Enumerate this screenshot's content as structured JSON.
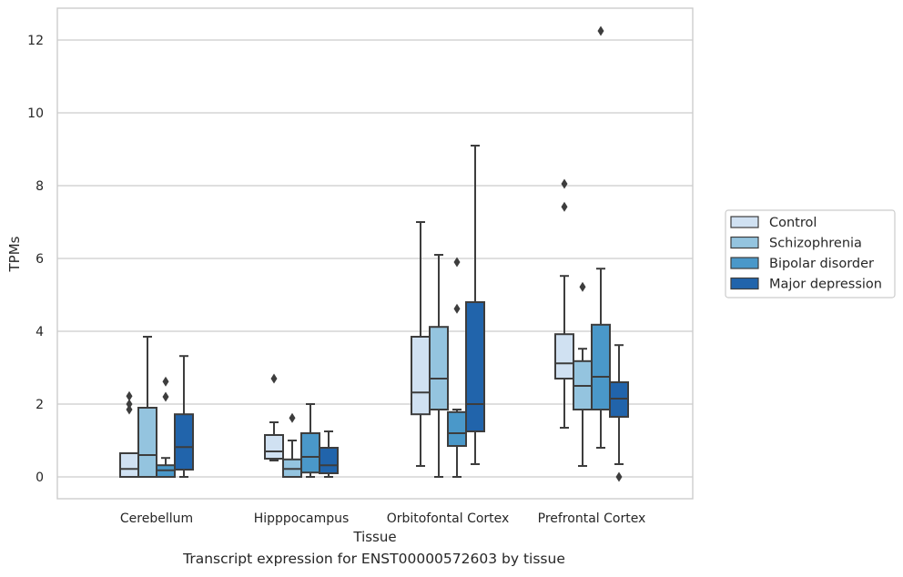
{
  "caption": "Transcript expression for ENST00000572603 by tissue",
  "chart_data": {
    "type": "box",
    "xlabel": "Tissue",
    "ylabel": "TPMs",
    "ylim": [
      -0.6,
      12.85
    ],
    "yticks": [
      0,
      2,
      4,
      6,
      8,
      10,
      12
    ],
    "grid": "horizontal",
    "legend_position": "right",
    "categories": [
      "Cerebellum",
      "Hipppocampus",
      "Orbitofontal Cortex",
      "Prefrontal Cortex"
    ],
    "series": [
      {
        "name": "Control",
        "color": "#d0e1f2",
        "boxes": [
          {
            "whislo": 0.0,
            "q1": 0.0,
            "med": 0.22,
            "q3": 0.65,
            "whishi": 0.65,
            "fliers": []
          },
          {
            "whislo": 0.45,
            "q1": 0.5,
            "med": 0.7,
            "q3": 1.15,
            "whishi": 1.5,
            "fliers": [
              2.7
            ]
          },
          {
            "whislo": 0.3,
            "q1": 1.72,
            "med": 2.32,
            "q3": 3.85,
            "whishi": 7.0,
            "fliers": []
          },
          {
            "whislo": 1.35,
            "q1": 2.7,
            "med": 3.12,
            "q3": 3.92,
            "whishi": 5.52,
            "fliers": [
              7.42,
              8.05
            ]
          }
        ]
      },
      {
        "name": "Schizophrenia",
        "color": "#94c4df",
        "boxes": [
          {
            "whislo": 0.0,
            "q1": 0.0,
            "med": 0.6,
            "q3": 1.9,
            "whishi": 3.85,
            "fliers": []
          },
          {
            "whislo": 0.0,
            "q1": 0.0,
            "med": 0.22,
            "q3": 0.48,
            "whishi": 1.0,
            "fliers": [
              1.62
            ]
          },
          {
            "whislo": 0.0,
            "q1": 1.85,
            "med": 2.7,
            "q3": 4.12,
            "whishi": 6.1,
            "fliers": []
          },
          {
            "whislo": 0.3,
            "q1": 1.85,
            "med": 2.5,
            "q3": 3.18,
            "whishi": 3.52,
            "fliers": [
              5.22
            ]
          }
        ]
      },
      {
        "name": "Bipolar disorder",
        "color": "#4a98c9",
        "boxes": [
          {
            "whislo": 0.0,
            "q1": 0.0,
            "med": 0.18,
            "q3": 0.32,
            "whishi": 0.52,
            "fliers": [
              2.2,
              2.62
            ]
          },
          {
            "whislo": 0.0,
            "q1": 0.12,
            "med": 0.55,
            "q3": 1.2,
            "whishi": 2.0,
            "fliers": []
          },
          {
            "whislo": 0.0,
            "q1": 0.85,
            "med": 1.2,
            "q3": 1.78,
            "whishi": 1.85,
            "fliers": [
              4.62,
              5.9
            ]
          },
          {
            "whislo": 0.8,
            "q1": 1.85,
            "med": 2.75,
            "q3": 4.18,
            "whishi": 5.72,
            "fliers": [
              12.25
            ]
          }
        ]
      },
      {
        "name": "Major depression",
        "color": "#2164ab",
        "boxes": [
          {
            "whislo": 0.0,
            "q1": 0.2,
            "med": 0.82,
            "q3": 1.72,
            "whishi": 3.32,
            "fliers": []
          },
          {
            "whislo": 0.0,
            "q1": 0.1,
            "med": 0.32,
            "q3": 0.8,
            "whishi": 1.25,
            "fliers": []
          },
          {
            "whislo": 0.35,
            "q1": 1.25,
            "med": 2.0,
            "q3": 4.8,
            "whishi": 9.1,
            "fliers": []
          },
          {
            "whislo": 0.35,
            "q1": 1.65,
            "med": 2.15,
            "q3": 2.6,
            "whishi": 3.62,
            "fliers": [
              0.0
            ]
          }
        ]
      }
    ],
    "extra_fliers": [
      {
        "category": "Cerebellum",
        "series": "Control",
        "values": [
          1.85,
          2.0,
          2.22
        ]
      }
    ]
  }
}
